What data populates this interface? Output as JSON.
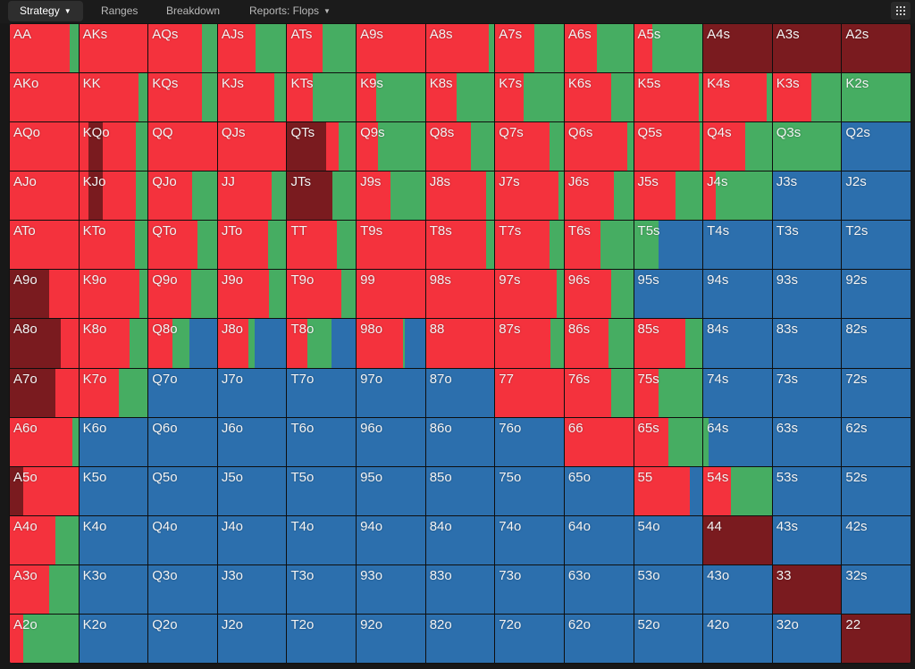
{
  "toolbar": {
    "tabs": [
      {
        "label": "Strategy",
        "dropdown": true,
        "active": true
      },
      {
        "label": "Ranges",
        "dropdown": false,
        "active": false
      },
      {
        "label": "Breakdown",
        "dropdown": false,
        "active": false
      },
      {
        "label": "Reports: Flops",
        "dropdown": true,
        "active": false
      }
    ],
    "menu_icon": "grid-menu-icon"
  },
  "colors": {
    "raise": "#f4323d",
    "allin": "#7a1b1f",
    "call": "#46ad62",
    "fold": "#2c6fad"
  },
  "rows": [
    [
      "AA",
      "AKs",
      "AQs",
      "AJs",
      "ATs",
      "A9s",
      "A8s",
      "A7s",
      "A6s",
      "A5s",
      "A4s",
      "A3s",
      "A2s"
    ],
    [
      "AKo",
      "KK",
      "KQs",
      "KJs",
      "KTs",
      "K9s",
      "K8s",
      "K7s",
      "K6s",
      "K5s",
      "K4s",
      "K3s",
      "K2s"
    ],
    [
      "AQo",
      "KQo",
      "QQ",
      "QJs",
      "QTs",
      "Q9s",
      "Q8s",
      "Q7s",
      "Q6s",
      "Q5s",
      "Q4s",
      "Q3s",
      "Q2s"
    ],
    [
      "AJo",
      "KJo",
      "QJo",
      "JJ",
      "JTs",
      "J9s",
      "J8s",
      "J7s",
      "J6s",
      "J5s",
      "J4s",
      "J3s",
      "J2s"
    ],
    [
      "ATo",
      "KTo",
      "QTo",
      "JTo",
      "TT",
      "T9s",
      "T8s",
      "T7s",
      "T6s",
      "T5s",
      "T4s",
      "T3s",
      "T2s"
    ],
    [
      "A9o",
      "K9o",
      "Q9o",
      "J9o",
      "T9o",
      "99",
      "98s",
      "97s",
      "96s",
      "95s",
      "94s",
      "93s",
      "92s"
    ],
    [
      "A8o",
      "K8o",
      "Q8o",
      "J8o",
      "T8o",
      "98o",
      "88",
      "87s",
      "86s",
      "85s",
      "84s",
      "83s",
      "82s"
    ],
    [
      "A7o",
      "K7o",
      "Q7o",
      "J7o",
      "T7o",
      "97o",
      "87o",
      "77",
      "76s",
      "75s",
      "74s",
      "73s",
      "72s"
    ],
    [
      "A6o",
      "K6o",
      "Q6o",
      "J6o",
      "T6o",
      "96o",
      "86o",
      "76o",
      "66",
      "65s",
      "64s",
      "63s",
      "62s"
    ],
    [
      "A5o",
      "K5o",
      "Q5o",
      "J5o",
      "T5o",
      "95o",
      "85o",
      "75o",
      "65o",
      "55",
      "54s",
      "53s",
      "52s"
    ],
    [
      "A4o",
      "K4o",
      "Q4o",
      "J4o",
      "T4o",
      "94o",
      "84o",
      "74o",
      "64o",
      "54o",
      "44",
      "43s",
      "42s"
    ],
    [
      "A3o",
      "K3o",
      "Q3o",
      "J3o",
      "T3o",
      "93o",
      "83o",
      "73o",
      "63o",
      "53o",
      "43o",
      "33",
      "32s"
    ],
    [
      "A2o",
      "K2o",
      "Q2o",
      "J2o",
      "T2o",
      "92o",
      "82o",
      "72o",
      "62o",
      "52o",
      "42o",
      "32o",
      "22"
    ]
  ],
  "strategy": {
    "AA": [
      [
        "raise",
        0.87
      ],
      [
        "call",
        0.13
      ]
    ],
    "AKs": [
      [
        "raise",
        1.0
      ]
    ],
    "AQs": [
      [
        "raise",
        0.78
      ],
      [
        "call",
        0.22
      ]
    ],
    "AJs": [
      [
        "raise",
        0.55
      ],
      [
        "call",
        0.45
      ]
    ],
    "ATs": [
      [
        "raise",
        0.52
      ],
      [
        "call",
        0.48
      ]
    ],
    "A9s": [
      [
        "raise",
        1.0
      ]
    ],
    "A8s": [
      [
        "raise",
        0.92
      ],
      [
        "call",
        0.08
      ]
    ],
    "A7s": [
      [
        "raise",
        0.57
      ],
      [
        "call",
        0.43
      ]
    ],
    "A6s": [
      [
        "raise",
        0.47
      ],
      [
        "call",
        0.53
      ]
    ],
    "A5s": [
      [
        "raise",
        0.27
      ],
      [
        "call",
        0.73
      ]
    ],
    "A4s": [
      [
        "allin",
        1.0
      ]
    ],
    "A3s": [
      [
        "allin",
        1.0
      ]
    ],
    "A2s": [
      [
        "allin",
        1.0
      ]
    ],
    "AKo": [
      [
        "raise",
        1.0
      ]
    ],
    "KK": [
      [
        "raise",
        0.87
      ],
      [
        "call",
        0.13
      ]
    ],
    "KQs": [
      [
        "raise",
        0.78
      ],
      [
        "call",
        0.22
      ]
    ],
    "KJs": [
      [
        "raise",
        0.82
      ],
      [
        "call",
        0.18
      ]
    ],
    "KTs": [
      [
        "raise",
        0.37
      ],
      [
        "call",
        0.63
      ]
    ],
    "K9s": [
      [
        "raise",
        0.28
      ],
      [
        "call",
        0.72
      ]
    ],
    "K8s": [
      [
        "raise",
        0.45
      ],
      [
        "call",
        0.55
      ]
    ],
    "K7s": [
      [
        "raise",
        0.42
      ],
      [
        "call",
        0.58
      ]
    ],
    "K6s": [
      [
        "raise",
        0.68
      ],
      [
        "call",
        0.32
      ]
    ],
    "K5s": [
      [
        "raise",
        0.94
      ],
      [
        "call",
        0.06
      ]
    ],
    "K4s": [
      [
        "raise",
        0.92
      ],
      [
        "call",
        0.08
      ]
    ],
    "K3s": [
      [
        "raise",
        0.56
      ],
      [
        "call",
        0.44
      ]
    ],
    "K2s": [
      [
        "call",
        1.0
      ]
    ],
    "AQo": [
      [
        "raise",
        1.0
      ]
    ],
    "KQo": [
      [
        "raise",
        0.13
      ],
      [
        "allin",
        0.22
      ],
      [
        "raise",
        0.48
      ],
      [
        "call",
        0.17
      ]
    ],
    "QQ": [
      [
        "raise",
        1.0
      ]
    ],
    "QJs": [
      [
        "raise",
        1.0
      ]
    ],
    "QTs": [
      [
        "allin",
        0.57
      ],
      [
        "raise",
        0.18
      ],
      [
        "call",
        0.25
      ]
    ],
    "Q9s": [
      [
        "raise",
        0.31
      ],
      [
        "call",
        0.69
      ]
    ],
    "Q8s": [
      [
        "raise",
        0.66
      ],
      [
        "call",
        0.34
      ]
    ],
    "Q7s": [
      [
        "raise",
        0.79
      ],
      [
        "call",
        0.21
      ]
    ],
    "Q6s": [
      [
        "raise",
        0.92
      ],
      [
        "call",
        0.08
      ]
    ],
    "Q5s": [
      [
        "raise",
        0.96
      ],
      [
        "call",
        0.04
      ]
    ],
    "Q4s": [
      [
        "raise",
        0.61
      ],
      [
        "call",
        0.39
      ]
    ],
    "Q3s": [
      [
        "call",
        1.0
      ]
    ],
    "Q2s": [
      [
        "fold",
        1.0
      ]
    ],
    "AJo": [
      [
        "raise",
        1.0
      ]
    ],
    "KJo": [
      [
        "raise",
        0.13
      ],
      [
        "allin",
        0.22
      ],
      [
        "raise",
        0.48
      ],
      [
        "call",
        0.17
      ]
    ],
    "QJo": [
      [
        "raise",
        0.64
      ],
      [
        "call",
        0.36
      ]
    ],
    "JJ": [
      [
        "raise",
        0.78
      ],
      [
        "call",
        0.22
      ]
    ],
    "JTs": [
      [
        "allin",
        0.66
      ],
      [
        "call",
        0.34
      ]
    ],
    "J9s": [
      [
        "raise",
        0.5
      ],
      [
        "call",
        0.5
      ]
    ],
    "J8s": [
      [
        "raise",
        0.88
      ],
      [
        "call",
        0.12
      ]
    ],
    "J7s": [
      [
        "raise",
        0.92
      ],
      [
        "call",
        0.08
      ]
    ],
    "J6s": [
      [
        "raise",
        0.72
      ],
      [
        "call",
        0.28
      ]
    ],
    "J5s": [
      [
        "raise",
        0.61
      ],
      [
        "call",
        0.39
      ]
    ],
    "J4s": [
      [
        "raise",
        0.18
      ],
      [
        "call",
        0.82
      ]
    ],
    "J3s": [
      [
        "fold",
        1.0
      ]
    ],
    "J2s": [
      [
        "fold",
        1.0
      ]
    ],
    "ATo": [
      [
        "raise",
        1.0
      ]
    ],
    "KTo": [
      [
        "raise",
        0.82
      ],
      [
        "call",
        0.18
      ]
    ],
    "QTo": [
      [
        "raise",
        0.71
      ],
      [
        "call",
        0.29
      ]
    ],
    "JTo": [
      [
        "raise",
        0.73
      ],
      [
        "call",
        0.27
      ]
    ],
    "TT": [
      [
        "raise",
        0.73
      ],
      [
        "call",
        0.27
      ]
    ],
    "T9s": [
      [
        "raise",
        1.0
      ]
    ],
    "T8s": [
      [
        "raise",
        0.88
      ],
      [
        "call",
        0.12
      ]
    ],
    "T7s": [
      [
        "raise",
        0.79
      ],
      [
        "call",
        0.21
      ]
    ],
    "T6s": [
      [
        "raise",
        0.52
      ],
      [
        "call",
        0.48
      ]
    ],
    "T5s": [
      [
        "call",
        0.36
      ],
      [
        "fold",
        0.64
      ]
    ],
    "T4s": [
      [
        "fold",
        1.0
      ]
    ],
    "T3s": [
      [
        "fold",
        1.0
      ]
    ],
    "T2s": [
      [
        "fold",
        1.0
      ]
    ],
    "A9o": [
      [
        "allin",
        0.58
      ],
      [
        "raise",
        0.42
      ]
    ],
    "K9o": [
      [
        "raise",
        0.88
      ],
      [
        "call",
        0.12
      ]
    ],
    "Q9o": [
      [
        "raise",
        0.62
      ],
      [
        "call",
        0.38
      ]
    ],
    "J9o": [
      [
        "raise",
        0.74
      ],
      [
        "call",
        0.26
      ]
    ],
    "T9o": [
      [
        "raise",
        0.79
      ],
      [
        "call",
        0.21
      ]
    ],
    "99": [
      [
        "raise",
        1.0
      ]
    ],
    "98s": [
      [
        "raise",
        1.0
      ]
    ],
    "97s": [
      [
        "raise",
        0.9
      ],
      [
        "call",
        0.1
      ]
    ],
    "96s": [
      [
        "raise",
        0.68
      ],
      [
        "call",
        0.32
      ]
    ],
    "95s": [
      [
        "fold",
        1.0
      ]
    ],
    "94s": [
      [
        "fold",
        1.0
      ]
    ],
    "93s": [
      [
        "fold",
        1.0
      ]
    ],
    "92s": [
      [
        "fold",
        1.0
      ]
    ],
    "A8o": [
      [
        "allin",
        0.74
      ],
      [
        "raise",
        0.26
      ]
    ],
    "K8o": [
      [
        "raise",
        0.74
      ],
      [
        "call",
        0.26
      ]
    ],
    "Q8o": [
      [
        "raise",
        0.35
      ],
      [
        "call",
        0.25
      ],
      [
        "fold",
        0.4
      ]
    ],
    "J8o": [
      [
        "raise",
        0.44
      ],
      [
        "call",
        0.1
      ],
      [
        "fold",
        0.46
      ]
    ],
    "T8o": [
      [
        "raise",
        0.3
      ],
      [
        "call",
        0.35
      ],
      [
        "fold",
        0.35
      ]
    ],
    "98o": [
      [
        "raise",
        0.68
      ],
      [
        "call",
        0.02
      ],
      [
        "fold",
        0.3
      ]
    ],
    "88": [
      [
        "raise",
        1.0
      ]
    ],
    "87s": [
      [
        "raise",
        0.8
      ],
      [
        "call",
        0.2
      ]
    ],
    "86s": [
      [
        "raise",
        0.64
      ],
      [
        "call",
        0.36
      ]
    ],
    "85s": [
      [
        "raise",
        0.75
      ],
      [
        "call",
        0.25
      ]
    ],
    "84s": [
      [
        "fold",
        1.0
      ]
    ],
    "83s": [
      [
        "fold",
        1.0
      ]
    ],
    "82s": [
      [
        "fold",
        1.0
      ]
    ],
    "A7o": [
      [
        "allin",
        0.66
      ],
      [
        "raise",
        0.34
      ]
    ],
    "K7o": [
      [
        "raise",
        0.58
      ],
      [
        "call",
        0.42
      ]
    ],
    "Q7o": [
      [
        "fold",
        1.0
      ]
    ],
    "J7o": [
      [
        "fold",
        1.0
      ]
    ],
    "T7o": [
      [
        "fold",
        1.0
      ]
    ],
    "97o": [
      [
        "fold",
        1.0
      ]
    ],
    "87o": [
      [
        "fold",
        1.0
      ]
    ],
    "77": [
      [
        "raise",
        1.0
      ]
    ],
    "76s": [
      [
        "raise",
        0.68
      ],
      [
        "call",
        0.32
      ]
    ],
    "75s": [
      [
        "raise",
        0.36
      ],
      [
        "call",
        0.64
      ]
    ],
    "74s": [
      [
        "fold",
        1.0
      ]
    ],
    "73s": [
      [
        "fold",
        1.0
      ]
    ],
    "72s": [
      [
        "fold",
        1.0
      ]
    ],
    "A6o": [
      [
        "raise",
        0.92
      ],
      [
        "call",
        0.08
      ]
    ],
    "K6o": [
      [
        "fold",
        1.0
      ]
    ],
    "Q6o": [
      [
        "fold",
        1.0
      ]
    ],
    "J6o": [
      [
        "fold",
        1.0
      ]
    ],
    "T6o": [
      [
        "fold",
        1.0
      ]
    ],
    "96o": [
      [
        "fold",
        1.0
      ]
    ],
    "86o": [
      [
        "fold",
        1.0
      ]
    ],
    "76o": [
      [
        "fold",
        1.0
      ]
    ],
    "66": [
      [
        "raise",
        1.0
      ]
    ],
    "65s": [
      [
        "raise",
        0.5
      ],
      [
        "call",
        0.5
      ]
    ],
    "64s": [
      [
        "call",
        0.08
      ],
      [
        "fold",
        0.92
      ]
    ],
    "63s": [
      [
        "fold",
        1.0
      ]
    ],
    "62s": [
      [
        "fold",
        1.0
      ]
    ],
    "A5o": [
      [
        "allin",
        0.2
      ],
      [
        "raise",
        0.8
      ]
    ],
    "K5o": [
      [
        "fold",
        1.0
      ]
    ],
    "Q5o": [
      [
        "fold",
        1.0
      ]
    ],
    "J5o": [
      [
        "fold",
        1.0
      ]
    ],
    "T5o": [
      [
        "fold",
        1.0
      ]
    ],
    "95o": [
      [
        "fold",
        1.0
      ]
    ],
    "85o": [
      [
        "fold",
        1.0
      ]
    ],
    "75o": [
      [
        "fold",
        1.0
      ]
    ],
    "65o": [
      [
        "fold",
        1.0
      ]
    ],
    "55": [
      [
        "raise",
        0.82
      ],
      [
        "fold",
        0.18
      ]
    ],
    "54s": [
      [
        "raise",
        0.4
      ],
      [
        "call",
        0.6
      ]
    ],
    "53s": [
      [
        "fold",
        1.0
      ]
    ],
    "52s": [
      [
        "fold",
        1.0
      ]
    ],
    "A4o": [
      [
        "raise",
        0.66
      ],
      [
        "call",
        0.34
      ]
    ],
    "K4o": [
      [
        "fold",
        1.0
      ]
    ],
    "Q4o": [
      [
        "fold",
        1.0
      ]
    ],
    "J4o": [
      [
        "fold",
        1.0
      ]
    ],
    "T4o": [
      [
        "fold",
        1.0
      ]
    ],
    "94o": [
      [
        "fold",
        1.0
      ]
    ],
    "84o": [
      [
        "fold",
        1.0
      ]
    ],
    "74o": [
      [
        "fold",
        1.0
      ]
    ],
    "64o": [
      [
        "fold",
        1.0
      ]
    ],
    "54o": [
      [
        "fold",
        1.0
      ]
    ],
    "44": [
      [
        "allin",
        1.0
      ]
    ],
    "43s": [
      [
        "fold",
        1.0
      ]
    ],
    "42s": [
      [
        "fold",
        1.0
      ]
    ],
    "A3o": [
      [
        "raise",
        0.57
      ],
      [
        "call",
        0.43
      ]
    ],
    "K3o": [
      [
        "fold",
        1.0
      ]
    ],
    "Q3o": [
      [
        "fold",
        1.0
      ]
    ],
    "J3o": [
      [
        "fold",
        1.0
      ]
    ],
    "T3o": [
      [
        "fold",
        1.0
      ]
    ],
    "93o": [
      [
        "fold",
        1.0
      ]
    ],
    "83o": [
      [
        "fold",
        1.0
      ]
    ],
    "73o": [
      [
        "fold",
        1.0
      ]
    ],
    "63o": [
      [
        "fold",
        1.0
      ]
    ],
    "53o": [
      [
        "fold",
        1.0
      ]
    ],
    "43o": [
      [
        "fold",
        1.0
      ]
    ],
    "33": [
      [
        "allin",
        1.0
      ]
    ],
    "32s": [
      [
        "fold",
        1.0
      ]
    ],
    "A2o": [
      [
        "raise",
        0.2
      ],
      [
        "call",
        0.8
      ]
    ],
    "K2o": [
      [
        "fold",
        1.0
      ]
    ],
    "Q2o": [
      [
        "fold",
        1.0
      ]
    ],
    "J2o": [
      [
        "fold",
        1.0
      ]
    ],
    "T2o": [
      [
        "fold",
        1.0
      ]
    ],
    "92o": [
      [
        "fold",
        1.0
      ]
    ],
    "82o": [
      [
        "fold",
        1.0
      ]
    ],
    "72o": [
      [
        "fold",
        1.0
      ]
    ],
    "62o": [
      [
        "fold",
        1.0
      ]
    ],
    "52o": [
      [
        "fold",
        1.0
      ]
    ],
    "42o": [
      [
        "fold",
        1.0
      ]
    ],
    "32o": [
      [
        "fold",
        1.0
      ]
    ],
    "22": [
      [
        "allin",
        1.0
      ]
    ]
  }
}
